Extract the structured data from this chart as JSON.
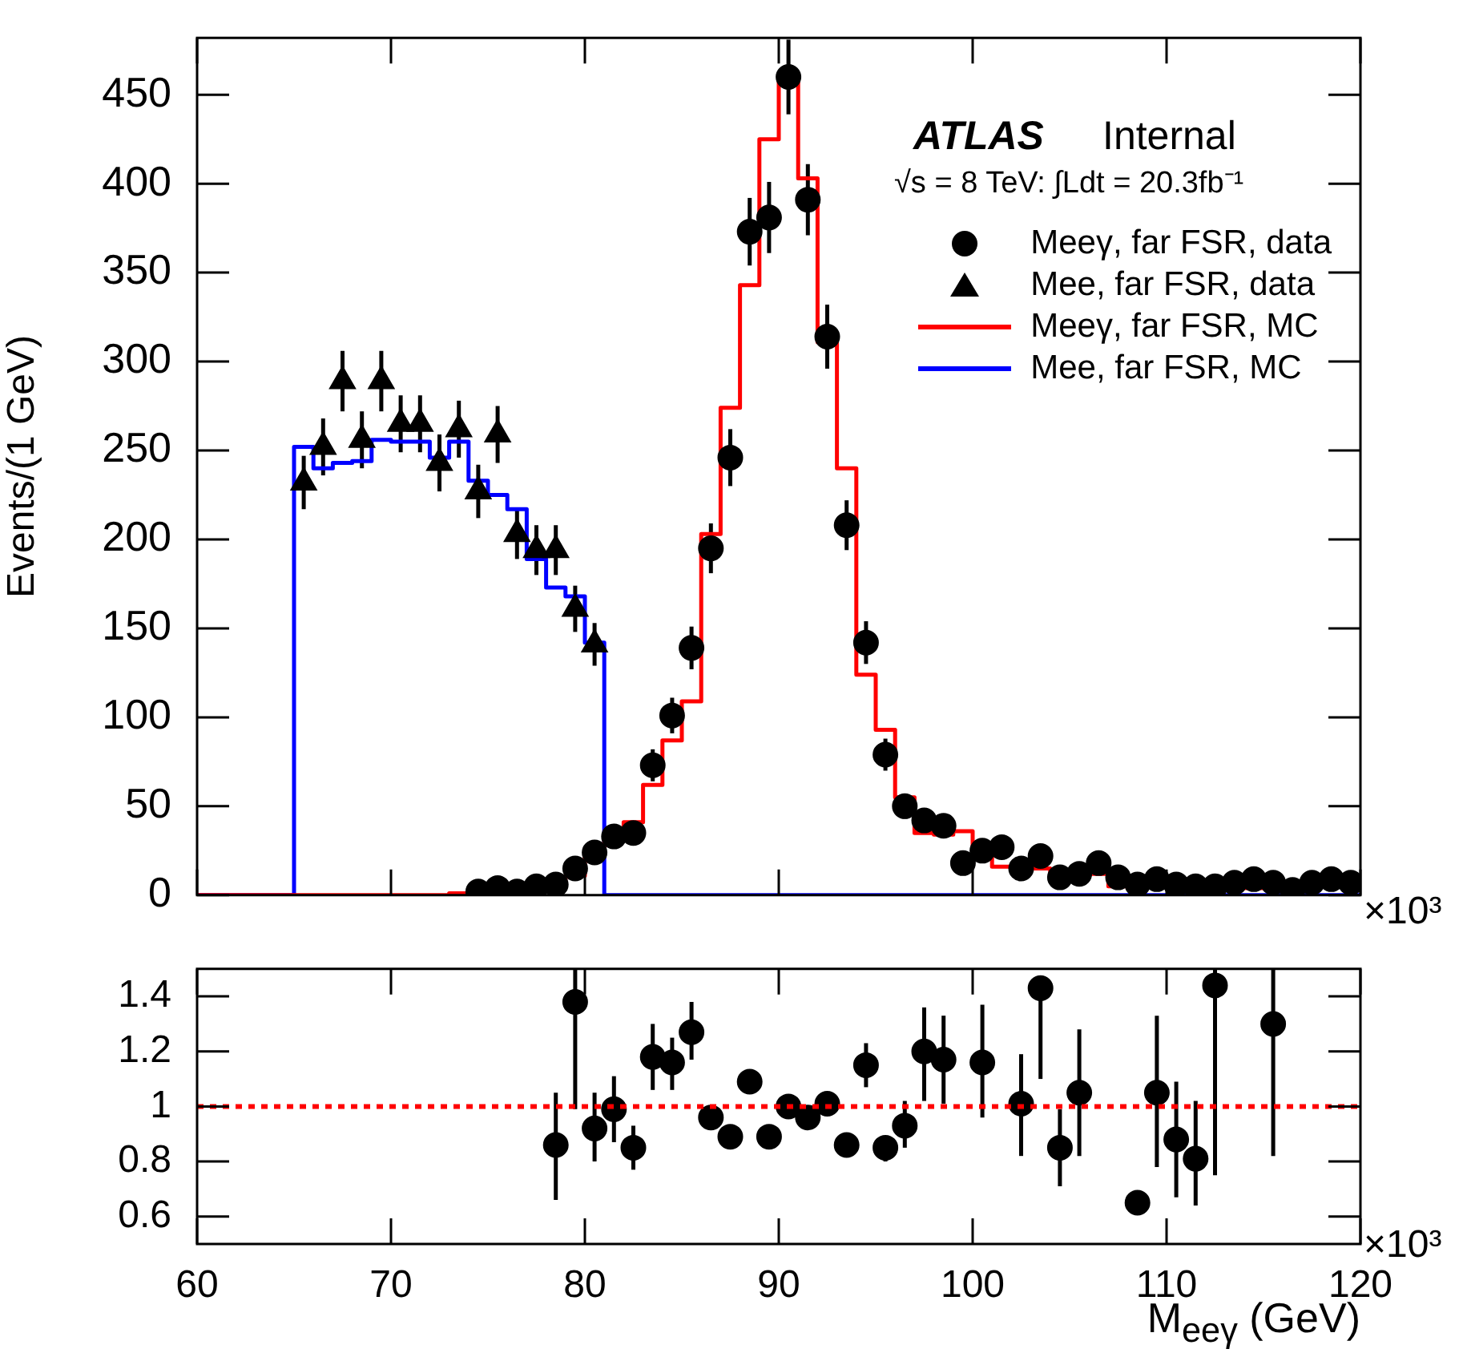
{
  "chart_data": [
    {
      "type": "scatter",
      "ylabel": "Events/(1 GeV)",
      "legend": "top right",
      "tick_labels": "y",
      "xlim": [
        60,
        120
      ],
      "xticks": [
        60,
        70,
        80,
        90,
        100,
        110,
        120
      ],
      "ylim": [
        0,
        482
      ],
      "yticks": [
        0,
        50,
        100,
        150,
        200,
        250,
        300,
        350,
        400,
        450
      ],
      "annotations": [
        "ATLAS",
        "Internal",
        "√s = 8 TeV: ∫Ldt = 20.3fb⁻¹",
        "×10³"
      ],
      "series": [
        {
          "name": "Meeγ, far FSR, MC",
          "type": "histogram",
          "color": "#ff0000",
          "bins": [
            60,
            61,
            62,
            63,
            64,
            65,
            66,
            67,
            68,
            69,
            70,
            71,
            72,
            73,
            74,
            75,
            76,
            77,
            78,
            79,
            80,
            81,
            82,
            83,
            84,
            85,
            86,
            87,
            88,
            89,
            90,
            91,
            92,
            93,
            94,
            95,
            96,
            97,
            98,
            99,
            100,
            101,
            102,
            103,
            104,
            105,
            106,
            107,
            108,
            109,
            110,
            111,
            112,
            113,
            114,
            115,
            116,
            117,
            118,
            119,
            120
          ],
          "values": [
            0,
            0,
            0,
            0,
            0,
            0,
            0,
            0,
            0,
            0,
            0,
            0,
            0,
            1,
            2,
            3,
            3,
            5,
            7,
            11,
            26,
            33,
            41,
            62,
            87,
            109,
            203,
            274,
            343,
            425,
            459,
            403,
            311,
            240,
            124,
            93,
            55,
            35,
            34,
            36,
            22,
            16,
            15,
            15,
            12,
            11,
            12,
            5,
            9,
            9,
            7,
            6,
            4,
            4,
            4,
            5,
            5,
            5,
            5,
            5
          ]
        },
        {
          "name": "Mee, far FSR, MC",
          "type": "histogram",
          "color": "#0000ff",
          "bins": [
            60,
            61,
            62,
            63,
            64,
            65,
            66,
            67,
            68,
            69,
            70,
            71,
            72,
            73,
            74,
            75,
            76,
            77,
            78,
            79,
            80,
            81,
            82,
            83,
            84,
            85,
            86,
            87,
            88,
            89,
            90,
            91,
            92,
            93,
            94,
            95,
            96,
            97,
            98,
            99,
            100,
            101,
            102,
            103,
            104,
            105,
            106,
            107,
            108,
            109,
            110,
            111,
            112,
            113,
            114,
            115,
            116,
            117,
            118,
            119,
            120
          ],
          "values": [
            0,
            0,
            0,
            0,
            0,
            252,
            240,
            243,
            244,
            256,
            255,
            255,
            246,
            255,
            233,
            225,
            217,
            189,
            173,
            168,
            142,
            0,
            0,
            0,
            0,
            0,
            0,
            0,
            0,
            0,
            0,
            0,
            0,
            0,
            0,
            0,
            0,
            0,
            0,
            0,
            0,
            0,
            0,
            0,
            0,
            0,
            0,
            0,
            0,
            0,
            0,
            0,
            0,
            0,
            0,
            0,
            0,
            0,
            0,
            0
          ]
        },
        {
          "name": "Meeγ, far FSR, data",
          "type": "scatter",
          "marker": "circle",
          "color": "#000000",
          "x": [
            74.5,
            75.5,
            76.5,
            77.5,
            78.5,
            79.5,
            80.5,
            81.5,
            82.5,
            83.5,
            84.5,
            85.5,
            86.5,
            87.5,
            88.5,
            89.5,
            90.5,
            91.5,
            92.5,
            93.5,
            94.5,
            95.5,
            96.5,
            97.5,
            98.5,
            99.5,
            100.5,
            101.5,
            102.5,
            103.5,
            104.5,
            105.5,
            106.5,
            107.5,
            108.5,
            109.5,
            110.5,
            111.5,
            112.5,
            113.5,
            114.5,
            115.5,
            116.5,
            117.5,
            118.5,
            119.5
          ],
          "values": [
            2,
            4,
            2,
            5,
            6,
            15,
            24,
            33,
            35,
            73,
            101,
            139,
            195,
            246,
            373,
            381,
            460,
            391,
            314,
            208,
            142,
            79,
            50,
            42,
            39,
            18,
            25,
            27,
            15,
            22,
            10,
            12,
            18,
            10,
            6,
            9,
            6,
            5,
            5,
            7,
            9,
            7,
            3,
            7,
            9,
            7
          ],
          "errors": [
            null,
            null,
            null,
            null,
            null,
            null,
            null,
            null,
            null,
            9,
            10,
            12,
            14,
            16,
            19,
            20,
            21,
            20,
            18,
            14,
            12,
            9,
            7,
            null,
            null,
            null,
            null,
            null,
            null,
            null,
            null,
            null,
            null,
            null,
            null,
            null,
            null,
            null,
            null,
            null,
            null,
            null,
            null,
            null,
            null,
            null
          ]
        },
        {
          "name": "Mee, far FSR, data",
          "type": "scatter",
          "marker": "triangle",
          "color": "#000000",
          "x": [
            65.5,
            66.5,
            67.5,
            68.5,
            69.5,
            70.5,
            71.5,
            72.5,
            73.5,
            74.5,
            75.5,
            76.5,
            77.5,
            78.5,
            79.5,
            80.5
          ],
          "values": [
            232,
            252,
            289,
            256,
            289,
            265,
            265,
            243,
            262,
            227,
            259,
            203,
            194,
            194,
            161,
            141
          ],
          "errors": [
            15,
            16,
            17,
            16,
            17,
            16,
            16,
            16,
            16,
            15,
            16,
            14,
            14,
            14,
            13,
            12
          ]
        }
      ]
    },
    {
      "type": "scatter",
      "xlabel": "M$_{eeγ}$ (GeV)",
      "xlim": [
        60,
        120
      ],
      "xticks": [
        60,
        70,
        80,
        90,
        100,
        110,
        120
      ],
      "ylim": [
        0.5,
        1.5
      ],
      "yticks": [
        0.6,
        0.8,
        1,
        1.2,
        1.4
      ],
      "annotations": [
        "×10³"
      ],
      "ref_lines": [
        {
          "axis": "y",
          "value": 1,
          "color": "#ff0000",
          "line_style": "dotted"
        }
      ],
      "series": [
        {
          "type": "scatter",
          "marker": "circle",
          "color": "#000000",
          "x": [
            78.5,
            79.5,
            80.5,
            81.5,
            82.5,
            83.5,
            84.5,
            85.5,
            86.5,
            87.5,
            88.5,
            89.5,
            90.5,
            91.5,
            92.5,
            93.5,
            94.5,
            95.5,
            96.5,
            97.5,
            98.5,
            100.5,
            102.5,
            103.5,
            104.5,
            105.5,
            108.5,
            109.5,
            110.5,
            111.5,
            112.5,
            115.5
          ],
          "values": [
            0.86,
            1.38,
            0.92,
            0.99,
            0.85,
            1.18,
            1.16,
            1.27,
            0.96,
            0.89,
            1.09,
            0.89,
            1.0,
            0.96,
            1.01,
            0.86,
            1.15,
            0.85,
            0.93,
            1.2,
            1.17,
            1.16,
            1.01,
            1.43,
            0.85,
            1.05,
            0.65,
            1.05,
            0.88,
            0.81,
            1.44,
            1.3
          ],
          "errors": [
            [
              0.66,
              1.05
            ],
            [
              0.99,
              1.5
            ],
            [
              0.8,
              1.05
            ],
            [
              0.87,
              1.11
            ],
            [
              0.77,
              0.93
            ],
            [
              1.06,
              1.3
            ],
            [
              1.06,
              1.25
            ],
            [
              1.17,
              1.38
            ],
            [
              0.93,
              0.98
            ],
            null,
            [
              1.06,
              1.12
            ],
            null,
            null,
            null,
            null,
            null,
            [
              1.07,
              1.23
            ],
            [
              0.8,
              0.88
            ],
            [
              0.85,
              1.02
            ],
            [
              1.02,
              1.36
            ],
            [
              1.01,
              1.33
            ],
            [
              0.96,
              1.37
            ],
            [
              0.82,
              1.19
            ],
            [
              1.1,
              1.46
            ],
            [
              0.71,
              0.99
            ],
            [
              0.82,
              1.28
            ],
            null,
            [
              0.78,
              1.33
            ],
            [
              0.67,
              1.09
            ],
            [
              0.64,
              1.02
            ],
            [
              0.75,
              1.5
            ],
            [
              0.82,
              1.5
            ]
          ]
        }
      ]
    }
  ]
}
